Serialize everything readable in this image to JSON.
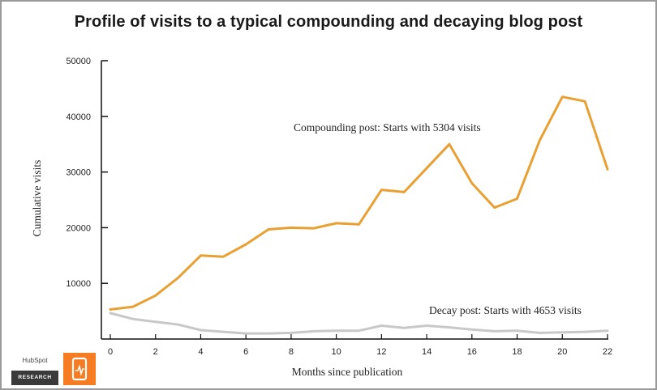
{
  "title": "Profile of visits to a typical compounding and decaying blog post",
  "logo": {
    "brand": "HubSpot",
    "research": "RESEARCH"
  },
  "colors": {
    "compounding": "#e8a033",
    "decay": "#c8c8c8",
    "axis": "#111111",
    "badge": "#f57c22"
  },
  "chart_data": {
    "type": "line",
    "xlabel": "Months since publication",
    "ylabel": "Cumulative visits",
    "xlim": [
      0,
      22
    ],
    "ylim": [
      0,
      50000
    ],
    "x_ticks": [
      0,
      2,
      4,
      6,
      8,
      10,
      12,
      14,
      16,
      18,
      20,
      22
    ],
    "y_ticks": [
      10000,
      20000,
      30000,
      40000,
      50000
    ],
    "grid": false,
    "x": [
      0,
      1,
      2,
      3,
      4,
      5,
      6,
      7,
      8,
      9,
      10,
      11,
      12,
      13,
      14,
      15,
      16,
      17,
      18,
      19,
      20,
      21,
      22
    ],
    "series": [
      {
        "key": "compounding",
        "values": [
          5304,
          5800,
          7800,
          11000,
          15000,
          14800,
          17000,
          19700,
          20000,
          19900,
          20800,
          20600,
          26800,
          26400,
          30700,
          35000,
          28000,
          23600,
          25200,
          35700,
          43500,
          42700,
          30500
        ]
      },
      {
        "key": "decay",
        "values": [
          4653,
          3600,
          3100,
          2600,
          1600,
          1300,
          1000,
          1000,
          1100,
          1400,
          1500,
          1500,
          2400,
          2000,
          2400,
          2100,
          1700,
          1400,
          1500,
          1100,
          1200,
          1300,
          1500
        ]
      }
    ],
    "annotations": [
      {
        "key": "compounding",
        "text": "Compounding post: Starts with 5304 visits"
      },
      {
        "key": "decay",
        "text": "Decay post: Starts with 4653 visits"
      }
    ]
  }
}
